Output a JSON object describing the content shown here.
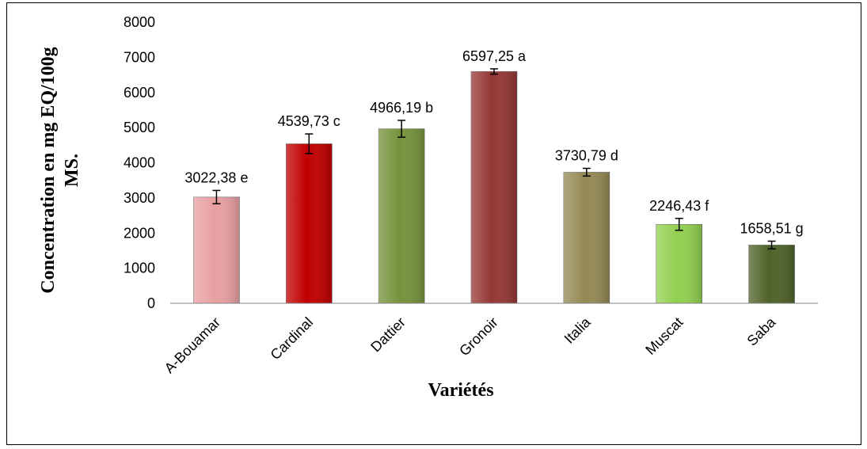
{
  "chart_data": {
    "type": "bar",
    "categories": [
      "A-Bouamar",
      "Cardinal",
      "Dattier",
      "Gronoir",
      "Italia",
      "Muscat",
      "Saba"
    ],
    "values": [
      3022.38,
      4539.73,
      4966.19,
      6597.25,
      3730.79,
      2246.43,
      1658.51
    ],
    "errors": [
      190,
      280,
      240,
      75,
      110,
      170,
      110
    ],
    "data_labels": [
      "3022,38 e",
      "4539,73 c",
      "4966,19 b",
      "6597,25 a",
      "3730,79 d",
      "2246,43 f",
      "1658,51 g"
    ],
    "colors": [
      "#e8a0a2",
      "#c00000",
      "#76933c",
      "#953735",
      "#948a54",
      "#92d050",
      "#4f6228"
    ],
    "title": "",
    "xlabel": "Variétés",
    "ylabel_line1": "Concentration en mg EQ/100g",
    "ylabel_line2": "MS.",
    "ylim": [
      0,
      8000
    ],
    "yticks": [
      "0",
      "1000",
      "2000",
      "3000",
      "4000",
      "5000",
      "6000",
      "7000",
      "8000"
    ],
    "grid": false,
    "legend": "none"
  }
}
